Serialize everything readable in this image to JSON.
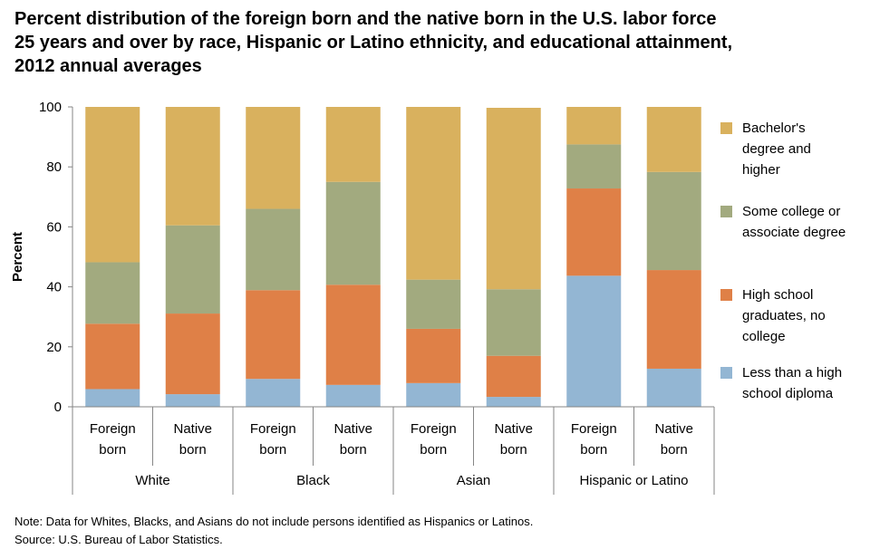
{
  "title_lines": [
    "Percent distribution of the foreign born and the native born in the U.S. labor force",
    "25 years and over by race, Hispanic or Latino ethnicity, and educational attainment,",
    "2012 annual averages"
  ],
  "note": "Note: Data for Whites, Blacks, and Asians do not include persons identified as Hispanics or Latinos.",
  "source": "Source: U.S. Bureau of Labor Statistics.",
  "chart_data": {
    "type": "bar",
    "stacked": true,
    "title": "Percent distribution of the foreign born and the native born in the U.S. labor force 25 years and over by race, Hispanic or Latino ethnicity, and educational attainment, 2012 annual averages",
    "ylabel": "Percent",
    "xlabel": "",
    "ylim": [
      0,
      100
    ],
    "yticks": [
      0,
      20,
      40,
      60,
      80,
      100
    ],
    "grid": false,
    "legend_position": "right",
    "groups": [
      "White",
      "Black",
      "Asian",
      "Hispanic or Latino"
    ],
    "categories": [
      [
        "Foreign",
        "born"
      ],
      [
        "Native",
        "born"
      ],
      [
        "Foreign",
        "born"
      ],
      [
        "Native",
        "born"
      ],
      [
        "Foreign",
        "born"
      ],
      [
        "Native",
        "born"
      ],
      [
        "Foreign",
        "born"
      ],
      [
        "Native",
        "born"
      ]
    ],
    "series": [
      {
        "name": "Less than a high school diploma",
        "color": "#93b6d3",
        "values": [
          5.9,
          4.2,
          9.3,
          7.3,
          7.9,
          3.3,
          43.7,
          12.7
        ]
      },
      {
        "name": "High school graduates, no college",
        "color": "#df8047",
        "values": [
          21.8,
          26.9,
          29.6,
          33.4,
          18.1,
          13.7,
          29.1,
          32.9
        ]
      },
      {
        "name": "Some college or associate degree",
        "color": "#a2aa7f",
        "values": [
          20.5,
          29.4,
          27.1,
          34.3,
          16.4,
          22.2,
          14.7,
          32.7
        ]
      },
      {
        "name": "Bachelor's degree and higher",
        "color": "#d9b15e",
        "values": [
          51.8,
          39.5,
          34.0,
          25.0,
          57.6,
          60.5,
          12.5,
          21.7
        ]
      }
    ]
  },
  "legend": [
    {
      "lines": [
        "Bachelor's",
        "degree and",
        "higher"
      ],
      "color": "#d9b15e"
    },
    {
      "lines": [
        "Some college or",
        "associate degree"
      ],
      "color": "#a2aa7f"
    },
    {
      "lines": [
        "High school",
        "graduates, no",
        "college"
      ],
      "color": "#df8047"
    },
    {
      "lines": [
        "Less than a high",
        "school diploma"
      ],
      "color": "#93b6d3"
    }
  ]
}
